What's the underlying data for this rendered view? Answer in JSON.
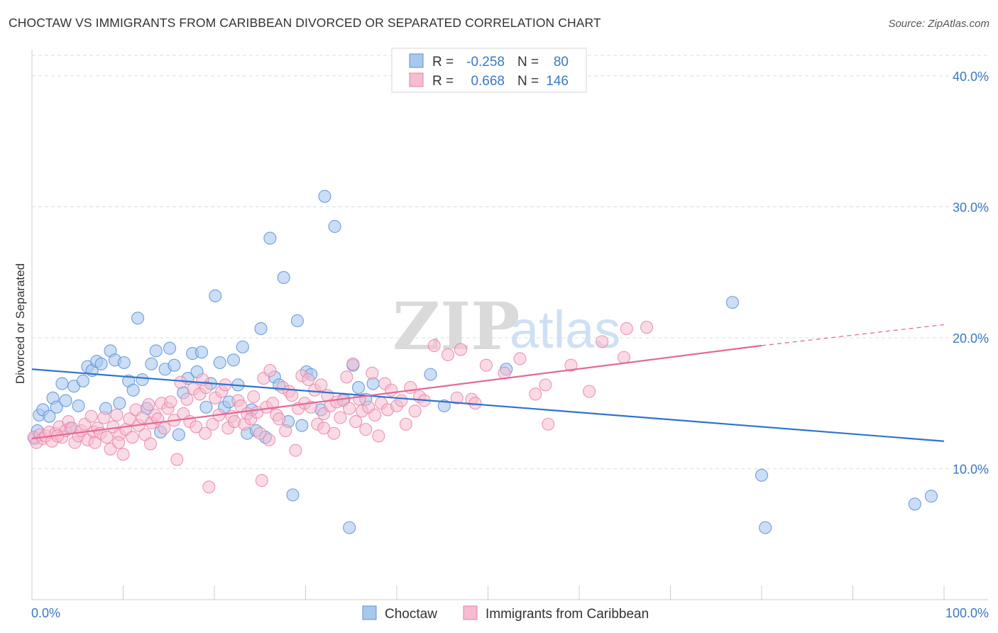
{
  "title": "CHOCTAW VS IMMIGRANTS FROM CARIBBEAN DIVORCED OR SEPARATED CORRELATION CHART",
  "source": "Source: ZipAtlas.com",
  "watermark": {
    "part1": "ZIP",
    "part2": "atlas"
  },
  "colors": {
    "choctaw_fill": "#a9c8ee",
    "choctaw_stroke": "#5b8fd3",
    "choctaw_line": "#2e74d0",
    "carib_fill": "#f6bcd0",
    "carib_stroke": "#e77fa4",
    "carib_line": "#e26a96",
    "tick": "#3b78c4",
    "grid": "#dcdcdc"
  },
  "legend": {
    "r_label": "R =",
    "n_label": "N =",
    "rows": [
      {
        "r": "-0.258",
        "n": "80"
      },
      {
        "r": "0.668",
        "n": "146"
      }
    ]
  },
  "chart_data": {
    "type": "scatter",
    "xlabel": "",
    "ylabel": "Divorced or Separated",
    "xlim": [
      0,
      100
    ],
    "ylim": [
      0,
      42
    ],
    "x_tick_labels": [
      "0.0%",
      "100.0%"
    ],
    "y_ticks": [
      10,
      20,
      30,
      40
    ],
    "y_tick_labels": [
      "10.0%",
      "20.0%",
      "30.0%",
      "40.0%"
    ],
    "grid": "horizontal dashed",
    "legend_position": "top-center",
    "series": [
      {
        "name": "Choctaw",
        "trend": {
          "x0": 0,
          "y0": 17.6,
          "x1": 100,
          "y1": 12.1
        },
        "points": [
          [
            0.3,
            12.3
          ],
          [
            0.8,
            14.1
          ],
          [
            1.2,
            14.5
          ],
          [
            1.9,
            14.0
          ],
          [
            2.3,
            15.4
          ],
          [
            2.7,
            14.7
          ],
          [
            3.3,
            16.5
          ],
          [
            3.7,
            15.2
          ],
          [
            4.2,
            13.1
          ],
          [
            4.6,
            16.3
          ],
          [
            5.1,
            14.8
          ],
          [
            5.6,
            16.7
          ],
          [
            6.1,
            17.8
          ],
          [
            6.6,
            17.5
          ],
          [
            7.1,
            18.2
          ],
          [
            7.6,
            18.0
          ],
          [
            8.1,
            14.6
          ],
          [
            8.6,
            19.0
          ],
          [
            9.1,
            18.3
          ],
          [
            9.6,
            15.0
          ],
          [
            10.1,
            18.1
          ],
          [
            10.6,
            16.7
          ],
          [
            11.1,
            16.0
          ],
          [
            11.6,
            21.5
          ],
          [
            12.1,
            16.8
          ],
          [
            12.6,
            14.6
          ],
          [
            13.1,
            18.0
          ],
          [
            13.6,
            19.0
          ],
          [
            14.1,
            12.8
          ],
          [
            14.6,
            17.6
          ],
          [
            15.1,
            19.2
          ],
          [
            15.6,
            17.9
          ],
          [
            16.1,
            12.6
          ],
          [
            16.6,
            15.8
          ],
          [
            17.1,
            16.9
          ],
          [
            17.6,
            18.8
          ],
          [
            18.1,
            17.4
          ],
          [
            18.6,
            18.9
          ],
          [
            19.1,
            14.7
          ],
          [
            19.6,
            16.5
          ],
          [
            20.1,
            23.2
          ],
          [
            20.6,
            18.1
          ],
          [
            21.1,
            14.7
          ],
          [
            21.6,
            15.1
          ],
          [
            22.1,
            18.3
          ],
          [
            22.6,
            16.4
          ],
          [
            23.1,
            19.3
          ],
          [
            23.6,
            12.7
          ],
          [
            24.1,
            14.5
          ],
          [
            24.6,
            12.9
          ],
          [
            25.1,
            20.7
          ],
          [
            25.6,
            12.4
          ],
          [
            26.1,
            27.6
          ],
          [
            26.6,
            17.0
          ],
          [
            27.1,
            16.4
          ],
          [
            27.6,
            24.6
          ],
          [
            28.1,
            13.6
          ],
          [
            28.6,
            8.0
          ],
          [
            29.1,
            21.3
          ],
          [
            29.6,
            13.3
          ],
          [
            30.1,
            17.4
          ],
          [
            30.6,
            17.2
          ],
          [
            31.7,
            14.5
          ],
          [
            32.1,
            30.8
          ],
          [
            33.2,
            28.5
          ],
          [
            34.2,
            15.3
          ],
          [
            34.8,
            5.5
          ],
          [
            35.2,
            17.9
          ],
          [
            35.8,
            16.2
          ],
          [
            36.6,
            15.3
          ],
          [
            37.4,
            16.5
          ],
          [
            43.7,
            17.2
          ],
          [
            45.2,
            14.8
          ],
          [
            52.0,
            17.6
          ],
          [
            76.8,
            22.7
          ],
          [
            80.0,
            9.5
          ],
          [
            80.4,
            5.5
          ],
          [
            96.8,
            7.3
          ],
          [
            98.6,
            7.9
          ],
          [
            0.6,
            12.9
          ]
        ]
      },
      {
        "name": "Immigrants from Caribbean",
        "trend": {
          "x0": 0,
          "y0": 12.3,
          "x1": 80,
          "y1": 19.4,
          "dash_x1": 100,
          "dash_y1": 21.0
        },
        "points": [
          [
            0.2,
            12.4
          ],
          [
            0.5,
            12.0
          ],
          [
            0.9,
            12.6
          ],
          [
            1.2,
            12.3
          ],
          [
            1.5,
            12.5
          ],
          [
            1.9,
            12.8
          ],
          [
            2.2,
            12.1
          ],
          [
            2.6,
            12.7
          ],
          [
            3.0,
            13.2
          ],
          [
            3.3,
            12.4
          ],
          [
            3.7,
            12.9
          ],
          [
            4.0,
            13.6
          ],
          [
            4.4,
            13.1
          ],
          [
            4.7,
            12.0
          ],
          [
            5.1,
            12.5
          ],
          [
            5.4,
            12.9
          ],
          [
            5.8,
            13.4
          ],
          [
            6.1,
            12.2
          ],
          [
            6.5,
            14.0
          ],
          [
            6.8,
            12.8
          ],
          [
            7.2,
            13.1
          ],
          [
            7.5,
            12.7
          ],
          [
            7.9,
            13.9
          ],
          [
            8.2,
            12.4
          ],
          [
            8.6,
            11.5
          ],
          [
            8.9,
            13.2
          ],
          [
            9.3,
            14.1
          ],
          [
            9.6,
            12.6
          ],
          [
            10.0,
            11.1
          ],
          [
            10.3,
            13.0
          ],
          [
            10.7,
            13.8
          ],
          [
            11.0,
            12.4
          ],
          [
            11.4,
            14.5
          ],
          [
            11.7,
            13.3
          ],
          [
            12.1,
            13.9
          ],
          [
            12.4,
            12.6
          ],
          [
            12.8,
            14.9
          ],
          [
            13.1,
            13.5
          ],
          [
            13.5,
            14.1
          ],
          [
            13.8,
            13.8
          ],
          [
            14.2,
            15.0
          ],
          [
            14.5,
            13.1
          ],
          [
            14.9,
            14.6
          ],
          [
            15.2,
            15.1
          ],
          [
            15.6,
            13.7
          ],
          [
            15.9,
            10.7
          ],
          [
            16.3,
            16.6
          ],
          [
            16.6,
            14.2
          ],
          [
            17.0,
            15.3
          ],
          [
            17.3,
            13.6
          ],
          [
            17.7,
            16.1
          ],
          [
            18.0,
            13.2
          ],
          [
            18.4,
            15.7
          ],
          [
            18.7,
            16.8
          ],
          [
            19.1,
            16.2
          ],
          [
            19.4,
            8.6
          ],
          [
            19.8,
            13.4
          ],
          [
            20.1,
            15.4
          ],
          [
            20.5,
            14.1
          ],
          [
            20.8,
            15.9
          ],
          [
            21.2,
            16.4
          ],
          [
            21.5,
            13.1
          ],
          [
            21.9,
            14.0
          ],
          [
            22.2,
            13.6
          ],
          [
            22.6,
            15.2
          ],
          [
            22.9,
            14.8
          ],
          [
            23.3,
            13.4
          ],
          [
            23.6,
            14.2
          ],
          [
            24.0,
            13.8
          ],
          [
            24.3,
            15.5
          ],
          [
            24.7,
            14.3
          ],
          [
            25.0,
            12.7
          ],
          [
            25.4,
            16.9
          ],
          [
            25.7,
            14.7
          ],
          [
            26.1,
            17.5
          ],
          [
            26.4,
            15.0
          ],
          [
            26.8,
            14.1
          ],
          [
            27.1,
            13.8
          ],
          [
            27.5,
            16.2
          ],
          [
            27.8,
            12.9
          ],
          [
            28.2,
            15.9
          ],
          [
            28.5,
            15.6
          ],
          [
            28.9,
            11.4
          ],
          [
            29.2,
            14.6
          ],
          [
            29.6,
            17.1
          ],
          [
            29.9,
            15.0
          ],
          [
            30.3,
            16.8
          ],
          [
            30.6,
            14.7
          ],
          [
            31.0,
            16.0
          ],
          [
            31.3,
            13.4
          ],
          [
            31.7,
            16.4
          ],
          [
            32.0,
            14.2
          ],
          [
            32.4,
            15.6
          ],
          [
            32.7,
            14.8
          ],
          [
            33.1,
            12.7
          ],
          [
            33.4,
            15.1
          ],
          [
            33.8,
            13.9
          ],
          [
            34.1,
            15.2
          ],
          [
            34.5,
            17.0
          ],
          [
            34.8,
            14.6
          ],
          [
            35.2,
            18.0
          ],
          [
            35.5,
            13.6
          ],
          [
            35.9,
            15.3
          ],
          [
            36.2,
            14.4
          ],
          [
            36.6,
            13.0
          ],
          [
            36.9,
            14.7
          ],
          [
            37.3,
            17.3
          ],
          [
            37.6,
            14.1
          ],
          [
            38.0,
            12.5
          ],
          [
            38.3,
            15.0
          ],
          [
            38.7,
            16.5
          ],
          [
            39.0,
            14.5
          ],
          [
            39.4,
            16.0
          ],
          [
            40.0,
            14.8
          ],
          [
            40.5,
            15.2
          ],
          [
            41.0,
            13.4
          ],
          [
            41.5,
            16.2
          ],
          [
            42.0,
            14.4
          ],
          [
            42.5,
            15.5
          ],
          [
            43.0,
            15.2
          ],
          [
            44.1,
            19.4
          ],
          [
            45.6,
            18.7
          ],
          [
            46.6,
            15.4
          ],
          [
            47.0,
            19.1
          ],
          [
            48.2,
            15.3
          ],
          [
            48.6,
            15.0
          ],
          [
            49.8,
            17.9
          ],
          [
            51.8,
            17.3
          ],
          [
            53.5,
            18.4
          ],
          [
            55.2,
            15.7
          ],
          [
            56.3,
            16.4
          ],
          [
            56.6,
            13.4
          ],
          [
            59.1,
            17.9
          ],
          [
            61.1,
            15.9
          ],
          [
            62.5,
            19.7
          ],
          [
            64.9,
            18.5
          ],
          [
            65.2,
            20.7
          ],
          [
            67.4,
            20.8
          ],
          [
            25.2,
            9.1
          ],
          [
            9.5,
            12.0
          ],
          [
            2.8,
            12.5
          ],
          [
            6.9,
            12.0
          ],
          [
            13.0,
            11.9
          ],
          [
            19.0,
            12.7
          ],
          [
            26.0,
            12.2
          ],
          [
            32.0,
            13.1
          ]
        ]
      }
    ]
  },
  "bottom_legend": [
    {
      "label": "Choctaw"
    },
    {
      "label": "Immigrants from Caribbean"
    }
  ]
}
